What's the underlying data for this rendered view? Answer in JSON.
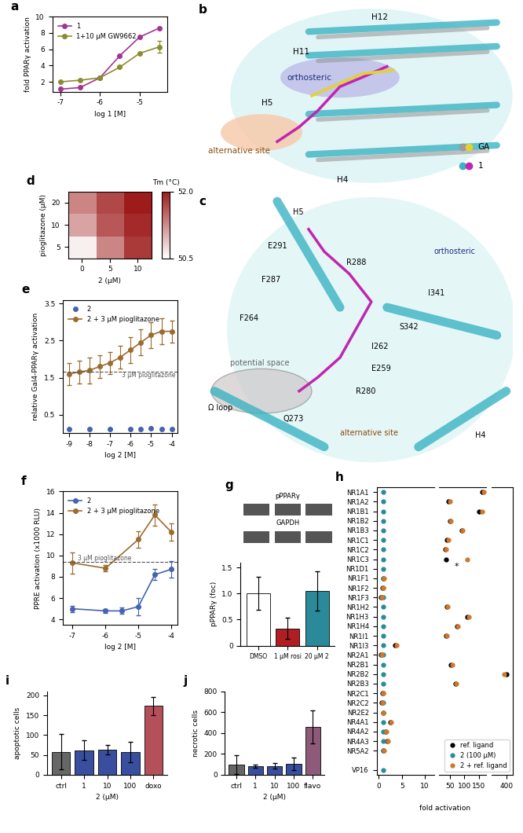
{
  "chart_data": [
    {
      "title": "a",
      "type": "line",
      "marker": "o",
      "x": [
        -7,
        -6.5,
        -6,
        -5.5,
        -5,
        -4.5
      ],
      "series": [
        {
          "name": "1",
          "color": "#a3358f",
          "values": [
            1.1,
            1.3,
            2.5,
            5.2,
            7.5,
            8.6
          ]
        },
        {
          "name": "1+10 µM GW9662",
          "color": "#8b8c2e",
          "values": [
            2.0,
            2.2,
            2.5,
            3.8,
            5.5,
            6.3
          ],
          "errors": [
            null,
            null,
            null,
            null,
            null,
            0.7
          ]
        }
      ],
      "xlabel": "log 1 [M]",
      "ylabel": "fold PPARγ activation",
      "xlim": [
        -7.2,
        -4.3
      ],
      "xticks": [
        -7,
        -6,
        -5
      ],
      "ylim": [
        0.8,
        10
      ],
      "yticks": [
        2,
        4,
        6,
        8,
        10
      ],
      "legend": "upper left"
    },
    {
      "title": "b",
      "type": "diagram",
      "labels": [
        "H12",
        "H11",
        "orthosteric",
        "H5",
        "alternative site",
        "H4"
      ],
      "legend_labels": [
        "GA",
        "1"
      ]
    },
    {
      "title": "c",
      "type": "diagram",
      "labels": [
        "H5",
        "E291",
        "R288",
        "orthosteric",
        "F287",
        "I341",
        "F264",
        "S342",
        "I262",
        "potential space",
        "E259",
        "R280",
        "Ω loop",
        "Q273",
        "alternative site",
        "H4"
      ]
    },
    {
      "title": "d",
      "type": "heatmap",
      "x_categories": [
        "0",
        "5",
        "10"
      ],
      "y_categories": [
        "20",
        "10",
        "5"
      ],
      "values": [
        [
          51.3,
          51.7,
          52.0
        ],
        [
          51.1,
          51.6,
          51.9
        ],
        [
          50.6,
          51.3,
          51.8
        ]
      ],
      "xlabel": "2 (µM)",
      "ylabel": "pioglitazone (µM)",
      "colorbar_label": "Tm (°C)",
      "colorbar_range": [
        50.5,
        52.0
      ],
      "colorbar_ticks": [
        50.5,
        {
          "value": 52,
          "label": "52.0"
        }
      ]
    },
    {
      "title": "e",
      "type": "line",
      "marker": "o",
      "x": [
        -9,
        -8.5,
        -8,
        -7.5,
        -7,
        -6.5,
        -6,
        -5.5,
        -5,
        -4.5,
        -4
      ],
      "series": [
        {
          "name": "2",
          "color": "#4463b0",
          "line_style": "none",
          "values": [
            0.1,
            null,
            0.1,
            null,
            0.1,
            null,
            0.1,
            0.12,
            0.13,
            0.1,
            0.1
          ]
        },
        {
          "name": "2 + 3 µM pioglitazone",
          "color": "#9c6b2e",
          "values": [
            1.6,
            1.65,
            1.7,
            1.8,
            1.9,
            2.05,
            2.25,
            2.45,
            2.65,
            2.75,
            2.75
          ],
          "errors": [
            0.3,
            0.3,
            0.35,
            0.3,
            0.3,
            0.3,
            0.35,
            0.35,
            0.35,
            0.35,
            0.3
          ]
        }
      ],
      "xlabel": "log 2 [M]",
      "ylabel": "relative Gal4-PPARγ activation",
      "xlim": [
        -9.3,
        -3.7
      ],
      "xticks": [
        -9,
        -8,
        -7,
        -6,
        -5,
        -4
      ],
      "ylim": [
        0,
        3.6
      ],
      "yticks": [
        0.5,
        1.5,
        2.5,
        3.5
      ],
      "annotations": [
        {
          "text": "3 µM pioglitazone",
          "y": 1.65
        }
      ],
      "legend": "upper left"
    },
    {
      "title": "f",
      "type": "line",
      "marker": "o",
      "x": [
        -7,
        -6,
        -5.5,
        -5,
        -4.5,
        -4
      ],
      "series": [
        {
          "name": "2",
          "color": "#4463b0",
          "values": [
            5.0,
            4.8,
            4.8,
            5.2,
            8.2,
            8.7
          ],
          "errors": [
            0.3,
            0.2,
            0.3,
            0.8,
            0.5,
            0.8
          ]
        },
        {
          "name": "2 + 3 µM pioglitazone",
          "color": "#9c6b2e",
          "values": [
            9.3,
            8.8,
            null,
            11.5,
            13.8,
            12.2
          ],
          "errors": [
            1.0,
            0.3,
            null,
            0.8,
            1.0,
            0.8
          ]
        }
      ],
      "xlabel": "log 2 [M]",
      "ylabel": "PPRE activation (x1000 RLU)",
      "xlim": [
        -7.3,
        -3.8
      ],
      "xticks": [
        -7,
        -6,
        -5,
        -4
      ],
      "ylim": [
        3.5,
        16
      ],
      "yticks": [
        4,
        6,
        8,
        10,
        12,
        14,
        16
      ],
      "annotations": [
        {
          "text": "3 µM pioglitazone",
          "y": 9.4
        }
      ],
      "legend": "upper left"
    },
    {
      "title": "g",
      "type": "bar",
      "blot_labels": [
        "pPPARγ",
        "GAPDH"
      ],
      "categories": [
        "DMSO",
        "1 µM rosi",
        "20 µM 2"
      ],
      "values": [
        1.0,
        0.33,
        1.05
      ],
      "errors": [
        0.32,
        0.2,
        0.38
      ],
      "colors": [
        "#ffffff",
        "#b01e24",
        "#2a8a9a"
      ],
      "ylabel": "pPPARγ (foc)",
      "ylim": [
        0,
        1.6
      ],
      "yticks": [
        0,
        0.5,
        {
          "value": 1,
          "label": "1.0"
        },
        1.5
      ]
    },
    {
      "title": "h",
      "type": "scatter",
      "orientation": "horizontal",
      "marker": "o",
      "categories": [
        "NR1A1",
        "NR1A2",
        "NR1B1",
        "NR1B2",
        "NR1B3",
        "NR1C1",
        "NR1C2",
        "NR1C3",
        "NR1D1",
        "NR1F1",
        "NR1F2",
        "NR1F3",
        "NR1H2",
        "NR1H3",
        "NR1H4",
        "NR1I1",
        "NR1I3",
        "NR2A1",
        "NR2B1",
        "NR2B2",
        "NR2B3",
        "NR2C1",
        "NR2C2",
        "NR2E2",
        "NR4A1",
        "NR4A2",
        "NR4A3",
        "NR5A2",
        null,
        "VP16"
      ],
      "series": [
        {
          "name": "ref. ligand",
          "color": "#000000",
          "values": [
            160,
            45,
            150,
            50,
            90,
            40,
            35,
            38,
            null,
            1.0,
            0.8,
            0.5,
            40,
            110,
            75,
            38,
            3.5,
            0.5,
            55,
            400,
            70,
            0.8,
            0.6,
            0.9,
            2.5,
            1.5,
            1.8,
            1.0,
            null,
            null
          ]
        },
        {
          "name": "2 (100 µM)",
          "color": "#2a8a9a",
          "values": [
            1,
            1,
            1,
            1,
            1,
            1,
            1,
            1,
            1,
            1,
            1,
            1,
            1,
            1,
            1,
            1,
            1,
            1,
            1,
            1,
            1,
            1,
            1,
            1,
            1,
            1,
            1,
            1,
            null,
            1
          ]
        },
        {
          "name": "2 + ref. ligand",
          "color": "#d2772a",
          "values": [
            165,
            50,
            160,
            55,
            95,
            45,
            38,
            110,
            null,
            1.2,
            0.9,
            0.6,
            42,
            115,
            78,
            40,
            3.8,
            0.6,
            58,
            390,
            72,
            0.9,
            0.7,
            1.0,
            2.6,
            1.6,
            1.9,
            1.1,
            null,
            null
          ]
        }
      ],
      "xlabel": "fold activation",
      "xlim": [
        [
          -0.5,
          12
        ],
        [
          15,
          175
        ],
        [
          330,
          430
        ]
      ],
      "xticks": [
        [
          0,
          5,
          10
        ],
        [
          50,
          100,
          150
        ],
        [
          400
        ]
      ],
      "annotations": [
        {
          "text": "*",
          "category": "NR1C3"
        }
      ],
      "legend": "lower right"
    },
    {
      "title": "i",
      "type": "bar",
      "categories": [
        "ctrl",
        "1",
        "10",
        "100",
        "doxo"
      ],
      "values": [
        58,
        62,
        63,
        57,
        173
      ],
      "errors": [
        45,
        25,
        12,
        25,
        22
      ],
      "colors": [
        "#666666",
        "#3a4ea0",
        "#3a4ea0",
        "#3a4ea0",
        "#b5505a"
      ],
      "xlabel": "2 (µM)",
      "ylabel": "apoptotic cells",
      "ylim": [
        0,
        210
      ],
      "yticks": [
        0,
        50,
        100,
        150,
        200
      ]
    },
    {
      "title": "j",
      "type": "bar",
      "categories": [
        "ctrl",
        "1",
        "10",
        "100",
        "flavo"
      ],
      "values": [
        95,
        85,
        85,
        105,
        460
      ],
      "errors": [
        90,
        15,
        25,
        60,
        160
      ],
      "colors": [
        "#666666",
        "#3a4ea0",
        "#3a4ea0",
        "#3a4ea0",
        "#8e5a7a"
      ],
      "xlabel": "2 (µM)",
      "ylabel": "necrotic cells",
      "ylim": [
        0,
        800
      ],
      "yticks": [
        0,
        200,
        400,
        600,
        800
      ]
    }
  ]
}
